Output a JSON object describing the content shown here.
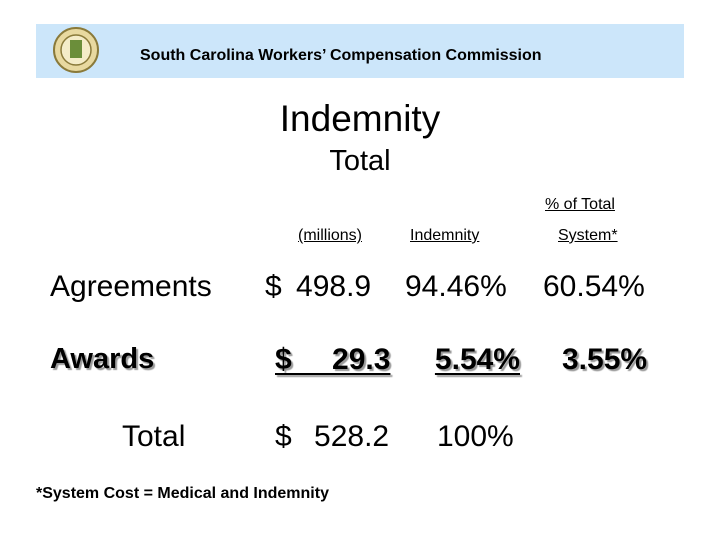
{
  "header": {
    "title": "South Carolina Workers’ Compensation Commission"
  },
  "title": "Indemnity",
  "subtitle": "Total",
  "table": {
    "group_header": "% of Total",
    "columns": [
      "(millions)",
      "Indemnity",
      "System*"
    ],
    "rows": [
      [
        "Agreements",
        "$ 498.9",
        "94.46%",
        "60.54%"
      ],
      [
        "Awards",
        "$ 29.3",
        "5.54%",
        "3.55%"
      ],
      [
        "Total",
        "$ 528.2",
        "100%"
      ]
    ]
  },
  "footnote": "*System Cost = Medical and Indemnity"
}
